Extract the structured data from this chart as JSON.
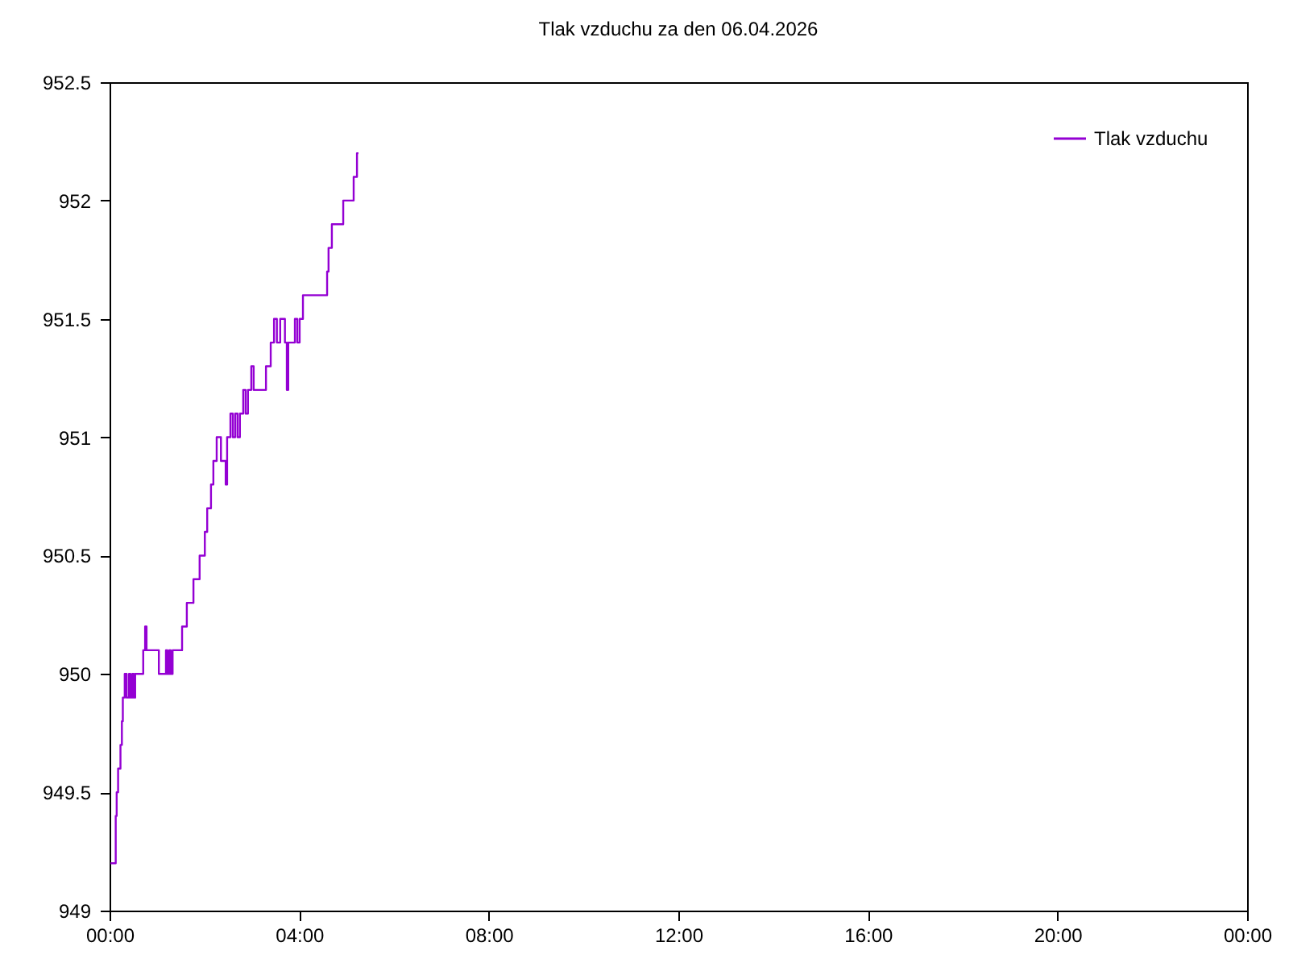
{
  "chart_data": {
    "type": "step",
    "title": "Tlak vzduchu za den 06.04.2026",
    "x": [
      0.02,
      0.13,
      0.15,
      0.18,
      0.23,
      0.26,
      0.28,
      0.32,
      0.36,
      0.41,
      0.44,
      0.48,
      0.51,
      0.54,
      0.71,
      0.75,
      0.78,
      1.04,
      1.19,
      1.22,
      1.26,
      1.29,
      1.33,
      1.53,
      1.63,
      1.77,
      1.9,
      2.01,
      2.06,
      2.14,
      2.19,
      2.26,
      2.35,
      2.45,
      2.48,
      2.55,
      2.6,
      2.65,
      2.7,
      2.75,
      2.82,
      2.87,
      2.92,
      2.99,
      3.04,
      3.3,
      3.4,
      3.47,
      3.53,
      3.6,
      3.7,
      3.74,
      3.77,
      3.91,
      3.96,
      4.01,
      4.08,
      4.59,
      4.62,
      4.69,
      4.93,
      5.15,
      5.22,
      5.25
    ],
    "series": [
      {
        "name": "Tlak vzduchu",
        "color": "#9400d3",
        "values": [
          949.2,
          949.4,
          949.5,
          949.6,
          949.7,
          949.8,
          949.9,
          950.0,
          949.9,
          950.0,
          949.9,
          950.0,
          949.9,
          950.0,
          950.1,
          950.2,
          950.1,
          950.0,
          950.1,
          950.0,
          950.1,
          950.0,
          950.1,
          950.2,
          950.3,
          950.4,
          950.5,
          950.6,
          950.7,
          950.8,
          950.9,
          951.0,
          950.9,
          950.8,
          951.0,
          951.1,
          951.0,
          951.1,
          951.0,
          951.1,
          951.2,
          951.1,
          951.2,
          951.3,
          951.2,
          951.3,
          951.4,
          951.5,
          951.4,
          951.5,
          951.4,
          951.2,
          951.4,
          951.5,
          951.4,
          951.5,
          951.6,
          951.7,
          951.8,
          951.9,
          952.0,
          952.1,
          952.2,
          952.2
        ]
      }
    ],
    "xlim": [
      0,
      24
    ],
    "xticks": [
      {
        "value": 0,
        "label": "00:00"
      },
      {
        "value": 4,
        "label": "04:00"
      },
      {
        "value": 8,
        "label": "08:00"
      },
      {
        "value": 12,
        "label": "12:00"
      },
      {
        "value": 16,
        "label": "16:00"
      },
      {
        "value": 20,
        "label": "20:00"
      },
      {
        "value": 24,
        "label": "00:00"
      }
    ],
    "ylim": [
      949,
      952.5
    ],
    "yticks": [
      949,
      949.5,
      950,
      950.5,
      951,
      951.5,
      952,
      952.5
    ],
    "grid": false,
    "legend": "top right"
  }
}
